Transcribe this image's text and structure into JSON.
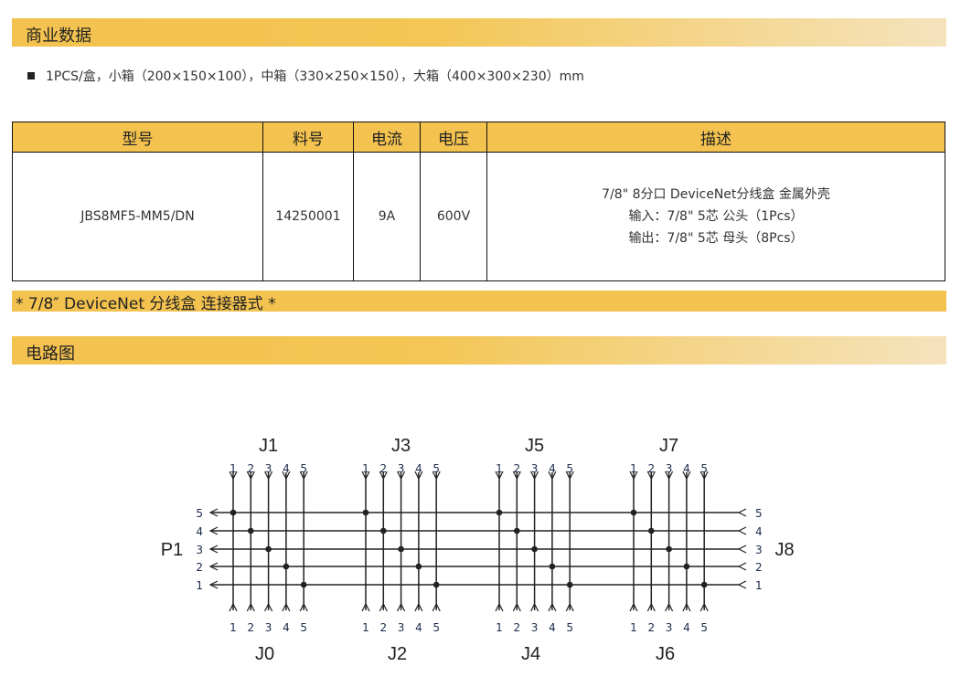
{
  "sections": {
    "business": "商业数据",
    "packaging": "1PCS/盒，小箱（200×150×100），中箱（330×250×150），大箱（400×300×230）mm",
    "style_bar": "* 7/8″  DeviceNet 分线盒 连接器式 *",
    "circuit": "电路图"
  },
  "table": {
    "headers": [
      "型号",
      "料号",
      "电流",
      "电压",
      "描述"
    ],
    "row": {
      "model": "JBS8MF5-MM5/DN",
      "part_no": "14250001",
      "current": "9A",
      "voltage": "600V",
      "desc": [
        "7/8\" 8分口 DeviceNet分线盒 金属外壳",
        "输入：7/8\" 5芯 公头（1Pcs）",
        "输出：7/8\" 5芯 母头（8Pcs）"
      ]
    }
  },
  "colors": {
    "accent": "#f3c24f",
    "line": "#222222",
    "pin_label": "#1a2a4a"
  },
  "diagram": {
    "top_connectors": [
      "J1",
      "J3",
      "J5",
      "J7"
    ],
    "bottom_connectors": [
      "J0",
      "J2",
      "J4",
      "J6"
    ],
    "left_connector": "P1",
    "right_connector": "J8",
    "pins": [
      "1",
      "2",
      "3",
      "4",
      "5"
    ]
  }
}
